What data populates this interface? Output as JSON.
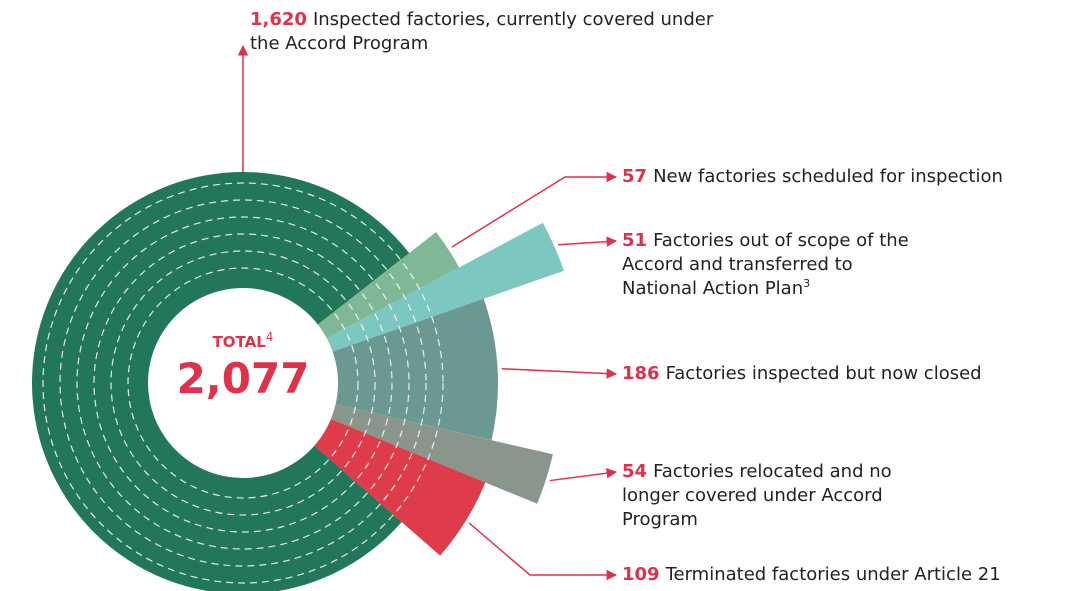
{
  "chart_data": {
    "type": "radial",
    "total_word": "TOTAL",
    "total_note": "4",
    "total": 2077,
    "total_label": "2,077",
    "categories": [
      "Inspected factories, currently covered under the Accord Program",
      "New factories scheduled for inspection",
      "Factories out of scope of the Accord and transferred to National Action Plan",
      "Factories inspected but now closed",
      "Factories relocated and no longer covered under Accord Program",
      "Terminated factories under Article 21"
    ],
    "values": [
      1620,
      57,
      51,
      186,
      54,
      109
    ],
    "value_labels": [
      "1,620",
      "57",
      "51",
      "186",
      "54",
      "109"
    ],
    "notes": [
      null,
      null,
      "3",
      null,
      null,
      null
    ],
    "colors": [
      "#22775a",
      "#7fb896",
      "#7cc7bf",
      "#6b9893",
      "#8a968c",
      "#de3b4b"
    ]
  }
}
